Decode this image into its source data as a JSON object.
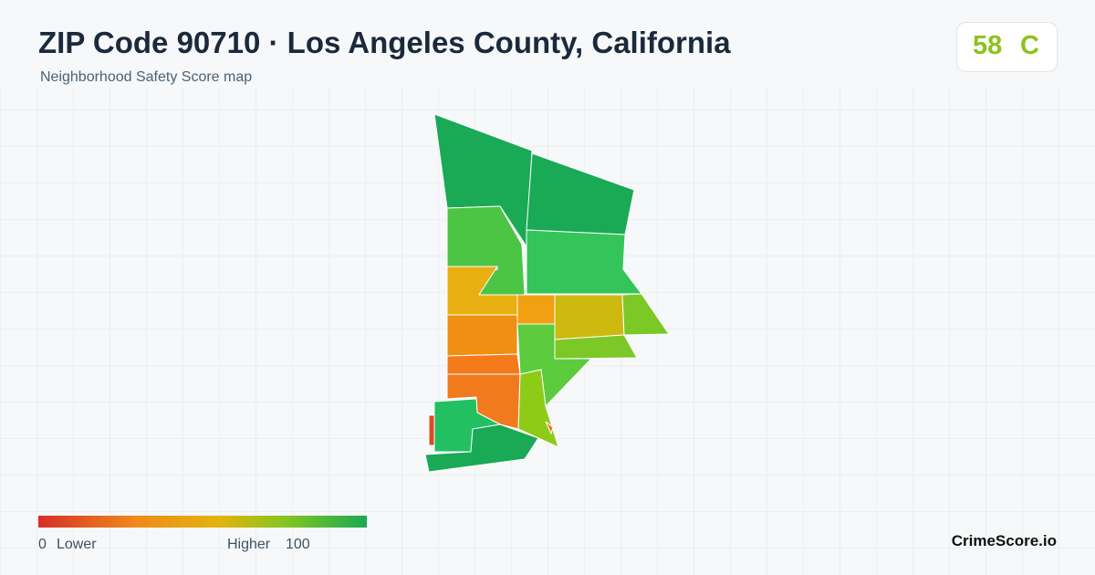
{
  "header": {
    "title": "ZIP Code 90710 · Los Angeles County, California",
    "subtitle": "Neighborhood Safety Score map"
  },
  "score": {
    "value": "58",
    "grade": "C"
  },
  "legend": {
    "min": "0",
    "min_label": "Lower",
    "max_label": "Higher",
    "max": "100"
  },
  "brand": "CrimeScore.io"
}
